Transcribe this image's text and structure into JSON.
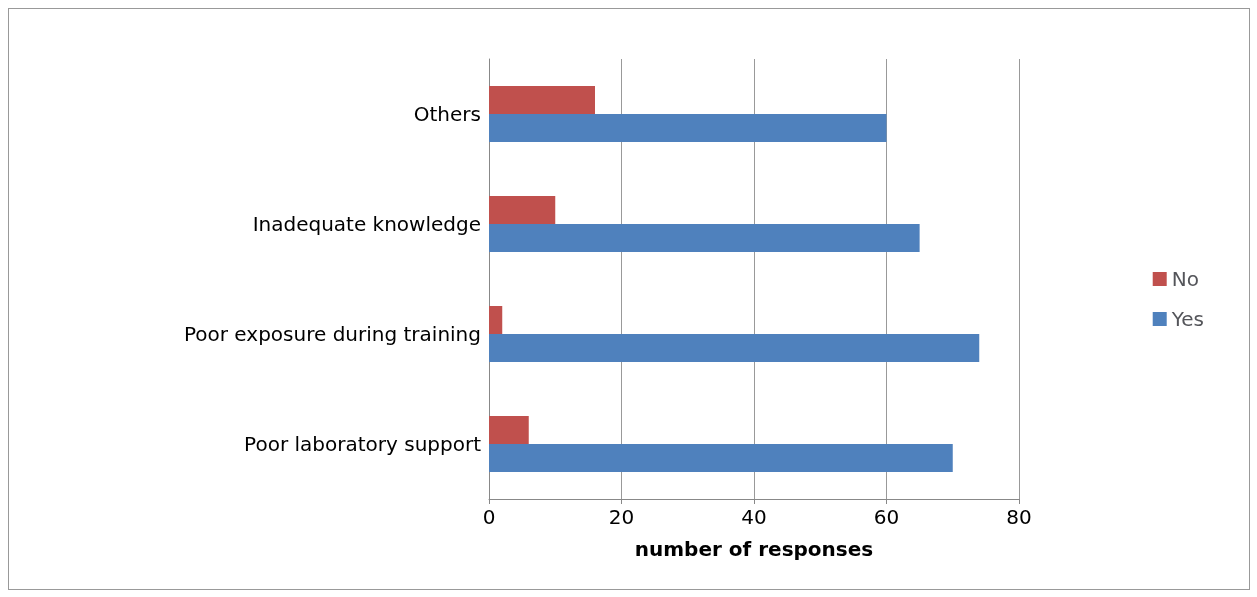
{
  "chart_data": {
    "type": "bar",
    "orientation": "horizontal",
    "xlabel": "number of responses",
    "categories": [
      "Others",
      "Inadequate knowledge",
      "Poor exposure during training",
      "Poor laboratory support"
    ],
    "series": [
      {
        "name": "No",
        "color": "#c0504d",
        "values": [
          16,
          10,
          2,
          6
        ]
      },
      {
        "name": "Yes",
        "color": "#4f81bd",
        "values": [
          60,
          65,
          74,
          70
        ]
      }
    ],
    "xlim": [
      0,
      80
    ],
    "xticks": [
      0,
      20,
      40,
      60,
      80
    ],
    "grid": "x",
    "legend": "right"
  }
}
